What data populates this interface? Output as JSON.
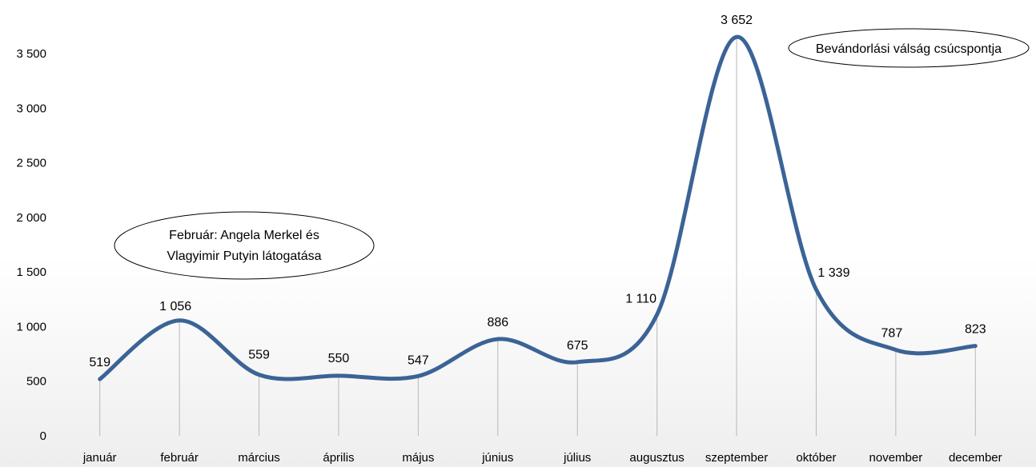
{
  "chart_data": {
    "type": "line",
    "categories": [
      "január",
      "február",
      "március",
      "április",
      "május",
      "június",
      "július",
      "augusztus",
      "szeptember",
      "október",
      "november",
      "december"
    ],
    "values": [
      519,
      1056,
      559,
      550,
      547,
      886,
      675,
      1110,
      3652,
      1339,
      787,
      823
    ],
    "data_labels": [
      "519",
      "1 056",
      "559",
      "550",
      "547",
      "886",
      "675",
      "1 110",
      "3 652",
      "1 339",
      "787",
      "823"
    ],
    "y_ticks": [
      0,
      500,
      1000,
      1500,
      2000,
      2500,
      3000,
      3500
    ],
    "y_tick_labels": [
      "0",
      "500",
      "1 000",
      "1 500",
      "2 000",
      "2 500",
      "3 000",
      "3 500"
    ],
    "ylim": [
      0,
      3700
    ],
    "title": "",
    "xlabel": "",
    "ylabel": "",
    "grid": false,
    "legend": "none",
    "drop_lines": true,
    "smooth": true,
    "line_color": "#3b6396",
    "annotations": [
      {
        "lines": [
          "Február: Angela Merkel és",
          "Vlagyimir Putyin látogatása"
        ],
        "category": "február"
      },
      {
        "lines": [
          "Bevándorlási válság csúcspontja"
        ],
        "category": "szeptember"
      }
    ]
  }
}
